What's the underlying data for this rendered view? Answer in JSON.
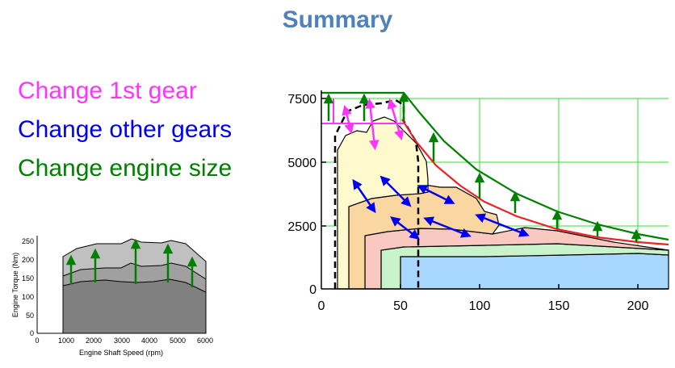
{
  "title": "Summary",
  "bullets": [
    {
      "text": "Change 1st gear",
      "color": "#ff33ff"
    },
    {
      "text": "Change other gears",
      "color": "#0000ee"
    },
    {
      "text": "Change engine size",
      "color": "#008000"
    }
  ],
  "main_chart": {
    "x_ticks": [
      "0",
      "50",
      "100",
      "150",
      "200"
    ],
    "y_ticks": [
      "0",
      "2500",
      "5000",
      "7500"
    ],
    "region_colors": [
      "#fffacd",
      "#fad7a0",
      "#f9c9c1",
      "#c9f3cb",
      "#a8d8ff"
    ]
  },
  "inset_chart": {
    "xlabel": "Engine Shaft Speed (rpm)",
    "ylabel": "Engine Torque (Nm)",
    "x_ticks": [
      "0",
      "1000",
      "2000",
      "3000",
      "4000",
      "5000",
      "6000"
    ],
    "y_ticks": [
      "0",
      "50",
      "100",
      "150",
      "200",
      "250"
    ]
  }
}
